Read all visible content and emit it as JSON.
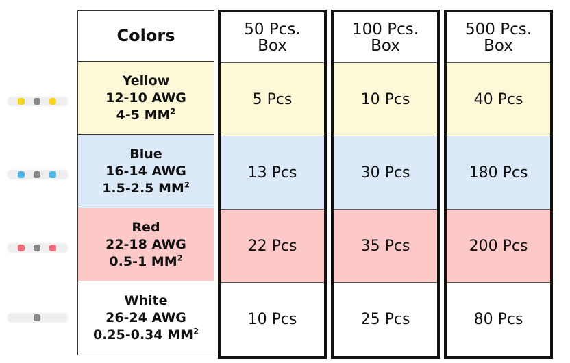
{
  "header": {
    "colors_label": "Colors",
    "columns": [
      {
        "line1": "50 Pcs.",
        "line2": "Box"
      },
      {
        "line1": "100 Pcs.",
        "line2": "Box"
      },
      {
        "line1": "500 Pcs.",
        "line2": "Box"
      }
    ]
  },
  "rows": [
    {
      "color": "Yellow",
      "awg": "12-10 AWG",
      "mm": "4-5 MM",
      "sup": "2",
      "bg": "#fdf8d8",
      "tube": "#f5d51a",
      "counts": [
        "5 Pcs",
        "10 Pcs",
        "40 Pcs"
      ]
    },
    {
      "color": "Blue",
      "awg": "16-14 AWG",
      "mm": "1.5-2.5 MM",
      "sup": "2",
      "bg": "#dce9f8",
      "tube": "#4fb8e8",
      "counts": [
        "13 Pcs",
        "30 Pcs",
        "180 Pcs"
      ]
    },
    {
      "color": "Red",
      "awg": "22-18 AWG",
      "mm": "0.5-1 MM",
      "sup": "2",
      "bg": "#fcc8c8",
      "tube": "#f06b7a",
      "counts": [
        "22 Pcs",
        "35 Pcs",
        "200 Pcs"
      ]
    },
    {
      "color": "White",
      "awg": "26-24 AWG",
      "mm": "0.25-0.34 MM",
      "sup": "2",
      "bg": "#ffffff",
      "tube": "#e6e6e6",
      "counts": [
        "10 Pcs",
        "25 Pcs",
        "80 Pcs"
      ]
    }
  ]
}
